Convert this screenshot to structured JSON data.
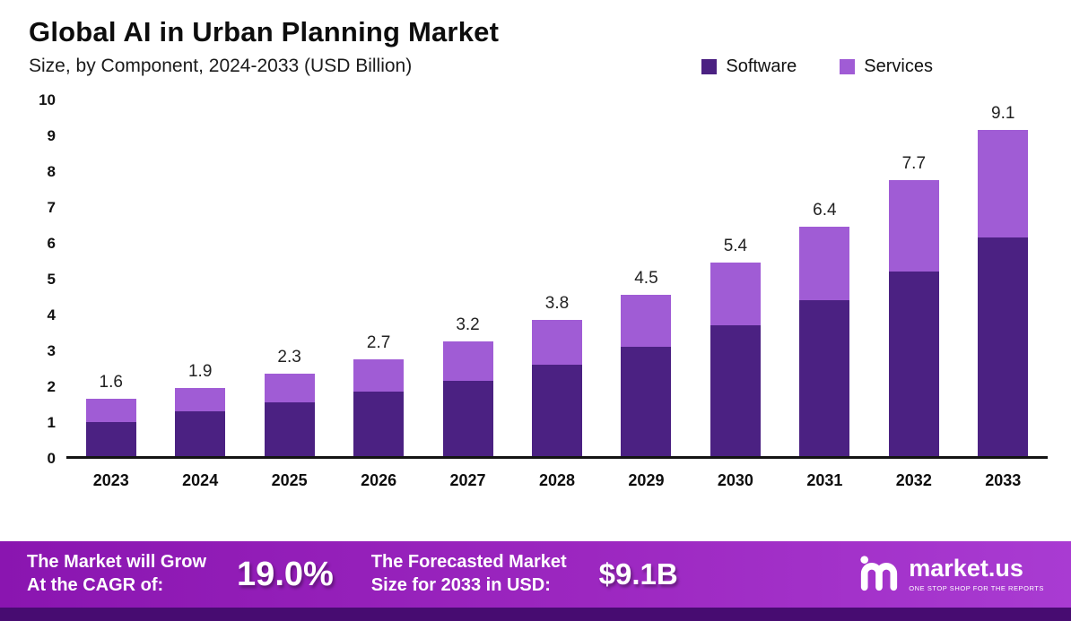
{
  "header": {
    "title": "Global AI in Urban Planning Market",
    "subtitle": "Size, by Component, 2024-2033 (USD Billion)"
  },
  "chart_data": {
    "type": "bar",
    "stacked": true,
    "title": "Global AI in Urban Planning Market",
    "subtitle": "Size, by Component, 2024-2033 (USD Billion)",
    "unit": "USD Billion",
    "categories": [
      "2023",
      "2024",
      "2025",
      "2026",
      "2027",
      "2028",
      "2029",
      "2030",
      "2031",
      "2032",
      "2033"
    ],
    "series": [
      {
        "name": "Software",
        "color": "#4b2182",
        "values": [
          0.95,
          1.25,
          1.5,
          1.8,
          2.1,
          2.55,
          3.05,
          3.65,
          4.35,
          5.15,
          6.1
        ]
      },
      {
        "name": "Services",
        "color": "#a05cd5",
        "values": [
          0.65,
          0.65,
          0.8,
          0.9,
          1.1,
          1.25,
          1.45,
          1.75,
          2.05,
          2.55,
          3.0
        ]
      }
    ],
    "totals": [
      1.6,
      1.9,
      2.3,
      2.7,
      3.2,
      3.8,
      4.5,
      5.4,
      6.4,
      7.7,
      9.1
    ],
    "total_labels": [
      "1.6",
      "1.9",
      "2.3",
      "2.7",
      "3.2",
      "3.8",
      "4.5",
      "5.4",
      "6.4",
      "7.7",
      "9.1"
    ],
    "ylim": [
      0,
      10
    ],
    "yticks": [
      0,
      1,
      2,
      3,
      4,
      5,
      6,
      7,
      8,
      9,
      10
    ],
    "grid": false,
    "legend_position": "top-right"
  },
  "footer": {
    "cagr_label": "The Market will Grow\nAt the CAGR of:",
    "cagr_value": "19.0%",
    "forecast_label": "The Forecasted Market\nSize for 2033 in USD:",
    "forecast_value": "$9.1B",
    "logo_text": "market.us",
    "logo_tagline": "ONE STOP SHOP FOR THE REPORTS"
  },
  "colors": {
    "software": "#4b2182",
    "services": "#a05cd5",
    "footer_gradient_start": "#8a15b0",
    "footer_gradient_end": "#a93bd2",
    "bottom_strip": "#470c71"
  }
}
